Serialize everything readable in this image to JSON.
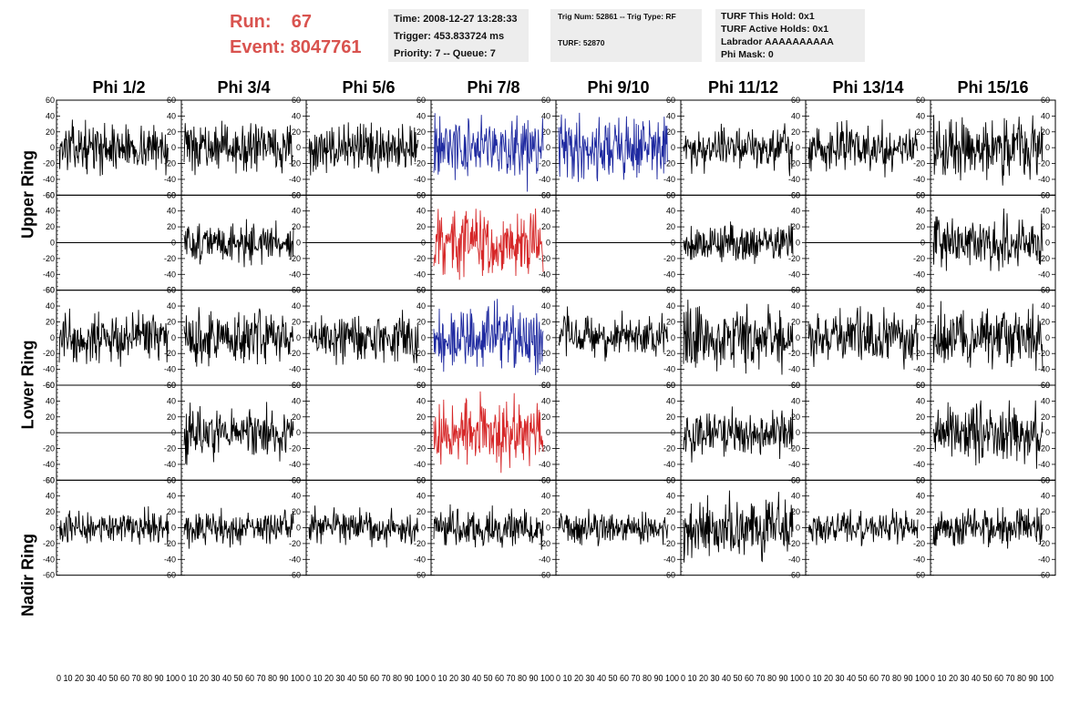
{
  "header": {
    "run_label": "Run:",
    "run_value": "67",
    "event_label": "Event:",
    "event_value": "8047761",
    "time_line": "Time: 2008-12-27 13:28:33",
    "trigger_line": "Trigger: 453.833724 ms",
    "priority_line": "Priority: 7 -- Queue: 7",
    "trig_line": "Trig Num: 52861 -- Trig Type: RF",
    "turf_line": "TURF: 52870",
    "turf_hold_line": "TURF This Hold: 0x1",
    "turf_active_line": "TURF Active Holds: 0x1",
    "labrador_line": "Labrador AAAAAAAAAA",
    "phi_mask_line": "Phi Mask: 0",
    "accent_color": "#d9534f",
    "box_color": "#ededed"
  },
  "chart_data": {
    "type": "line",
    "columns": [
      "Phi 1/2",
      "Phi 3/4",
      "Phi 5/6",
      "Phi 7/8",
      "Phi 9/10",
      "Phi 11/12",
      "Phi 13/14",
      "Phi 15/16"
    ],
    "rows": [
      "Upper Ring",
      "Lower Ring",
      "Nadir Ring"
    ],
    "subrows_per_ring": 2,
    "ylim": [
      -60,
      60
    ],
    "y_ticks": [
      -60,
      -40,
      -20,
      0,
      20,
      40,
      60
    ],
    "xlim": [
      0,
      100
    ],
    "x_ticks_label": "0 10 20 30 40 50 60 70 80 90 100",
    "last_col_x_ticks_label": "0 10 20 30 40 50 60 70 80 90 100",
    "samples": 100,
    "colors": {
      "normal": "#000000",
      "triggered_blue": "#1f2aa0",
      "triggered_red": "#d62728"
    },
    "panels": [
      {
        "row": 0,
        "col": 0,
        "color": "normal",
        "amplitude": 14,
        "flat": false
      },
      {
        "row": 0,
        "col": 1,
        "color": "normal",
        "amplitude": 14,
        "flat": false
      },
      {
        "row": 0,
        "col": 2,
        "color": "normal",
        "amplitude": 16,
        "flat": false
      },
      {
        "row": 0,
        "col": 3,
        "color": "triggered_blue",
        "amplitude": 20,
        "flat": false
      },
      {
        "row": 0,
        "col": 4,
        "color": "triggered_blue",
        "amplitude": 20,
        "flat": false
      },
      {
        "row": 0,
        "col": 5,
        "color": "normal",
        "amplitude": 14,
        "flat": false
      },
      {
        "row": 0,
        "col": 6,
        "color": "normal",
        "amplitude": 14,
        "flat": false
      },
      {
        "row": 0,
        "col": 7,
        "color": "normal",
        "amplitude": 18,
        "flat": false
      },
      {
        "row": 1,
        "col": 0,
        "color": "normal",
        "amplitude": 0,
        "flat": true
      },
      {
        "row": 1,
        "col": 1,
        "color": "normal",
        "amplitude": 12,
        "flat": false
      },
      {
        "row": 1,
        "col": 2,
        "color": "normal",
        "amplitude": 0,
        "flat": true
      },
      {
        "row": 1,
        "col": 3,
        "color": "triggered_red",
        "amplitude": 20,
        "flat": false
      },
      {
        "row": 1,
        "col": 4,
        "color": "normal",
        "amplitude": 0,
        "flat": true
      },
      {
        "row": 1,
        "col": 5,
        "color": "normal",
        "amplitude": 12,
        "flat": false
      },
      {
        "row": 1,
        "col": 6,
        "color": "normal",
        "amplitude": 0,
        "flat": true
      },
      {
        "row": 1,
        "col": 7,
        "color": "normal",
        "amplitude": 16,
        "flat": false
      },
      {
        "row": 2,
        "col": 0,
        "color": "normal",
        "amplitude": 16,
        "flat": false
      },
      {
        "row": 2,
        "col": 1,
        "color": "normal",
        "amplitude": 16,
        "flat": false
      },
      {
        "row": 2,
        "col": 2,
        "color": "normal",
        "amplitude": 16,
        "flat": false
      },
      {
        "row": 2,
        "col": 3,
        "color": "triggered_blue",
        "amplitude": 18,
        "flat": false
      },
      {
        "row": 2,
        "col": 4,
        "color": "normal",
        "amplitude": 14,
        "flat": false
      },
      {
        "row": 2,
        "col": 5,
        "color": "normal",
        "amplitude": 20,
        "flat": false
      },
      {
        "row": 2,
        "col": 6,
        "color": "normal",
        "amplitude": 16,
        "flat": false
      },
      {
        "row": 2,
        "col": 7,
        "color": "normal",
        "amplitude": 18,
        "flat": false
      },
      {
        "row": 3,
        "col": 0,
        "color": "normal",
        "amplitude": 0,
        "flat": true
      },
      {
        "row": 3,
        "col": 1,
        "color": "normal",
        "amplitude": 16,
        "flat": false
      },
      {
        "row": 3,
        "col": 2,
        "color": "normal",
        "amplitude": 0,
        "flat": true
      },
      {
        "row": 3,
        "col": 3,
        "color": "triggered_red",
        "amplitude": 20,
        "flat": false
      },
      {
        "row": 3,
        "col": 4,
        "color": "normal",
        "amplitude": 0,
        "flat": true
      },
      {
        "row": 3,
        "col": 5,
        "color": "normal",
        "amplitude": 14,
        "flat": false
      },
      {
        "row": 3,
        "col": 6,
        "color": "normal",
        "amplitude": 0,
        "flat": true
      },
      {
        "row": 3,
        "col": 7,
        "color": "normal",
        "amplitude": 18,
        "flat": false
      },
      {
        "row": 4,
        "col": 0,
        "color": "normal",
        "amplitude": 10,
        "flat": false
      },
      {
        "row": 4,
        "col": 1,
        "color": "normal",
        "amplitude": 10,
        "flat": false
      },
      {
        "row": 4,
        "col": 2,
        "color": "normal",
        "amplitude": 10,
        "flat": false
      },
      {
        "row": 4,
        "col": 3,
        "color": "normal",
        "amplitude": 12,
        "flat": false
      },
      {
        "row": 4,
        "col": 4,
        "color": "normal",
        "amplitude": 10,
        "flat": false
      },
      {
        "row": 4,
        "col": 5,
        "color": "normal",
        "amplitude": 18,
        "flat": false
      },
      {
        "row": 4,
        "col": 6,
        "color": "normal",
        "amplitude": 10,
        "flat": false
      },
      {
        "row": 4,
        "col": 7,
        "color": "normal",
        "amplitude": 12,
        "flat": false
      }
    ]
  }
}
